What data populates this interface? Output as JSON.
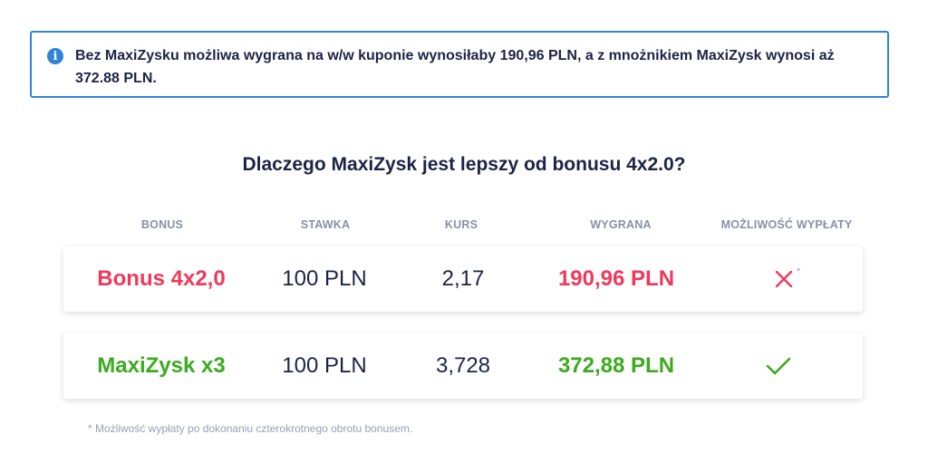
{
  "info": {
    "text": "Bez MaxiZysku możliwa wygrana na w/w kuponie wynosiłaby 190,96 PLN, a z mnożnikiem MaxiZysk wynosi aż 372.88 PLN.",
    "icon": "info-icon",
    "border_color": "#2f84d8"
  },
  "heading": "Dlaczego MaxiZysk jest lepszy od bonusu 4x2.0?",
  "table": {
    "columns": [
      "BONUS",
      "STAWKA",
      "KURS",
      "WYGRANA",
      "MOŻLIWOŚĆ WYPŁATY"
    ],
    "rows": [
      {
        "bonus": "Bonus 4x2,0",
        "stawka": "100 PLN",
        "kurs": "2,17",
        "wygrana": "190,96 PLN",
        "wyplata_icon": "cross-icon",
        "wyplata_note": "*",
        "color": "#f0395a"
      },
      {
        "bonus": "MaxiZysk x3",
        "stawka": "100 PLN",
        "kurs": "3,728",
        "wygrana": "372,88 PLN",
        "wyplata_icon": "check-icon",
        "color": "#3bab1f"
      }
    ]
  },
  "footnote": "* Możliwość wypłaty po dokonaniu czterokrotnego obrotu bonusem."
}
